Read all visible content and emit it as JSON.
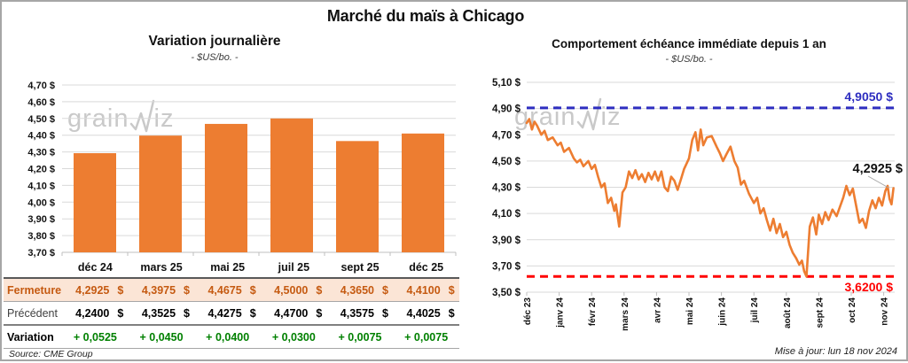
{
  "page": {
    "title": "Marché du maïs à Chicago",
    "source": "Source: CME Group",
    "updated": "Mise à jour: lun 18 nov 2024",
    "watermark": {
      "pre": "grain",
      "post": "iz"
    }
  },
  "colors": {
    "orange": "#ED7D31",
    "blue": "#2E2EC0",
    "red": "#FF0000",
    "green": "#008000",
    "fermeture_text": "#C55A11",
    "fermeture_bg": "#FBE5D6",
    "grid": "#D9D9D9",
    "axis": "#BFBFBF",
    "watermark": "#C9C9C9",
    "border": "#A6A6A6"
  },
  "chart_data": [
    {
      "type": "bar",
      "title": "Variation journalière",
      "subtitle": "- $US/bo. -",
      "categories": [
        "déc 24",
        "mars 25",
        "mai 25",
        "juil 25",
        "sept 25",
        "déc 25"
      ],
      "values": [
        4.2925,
        4.3975,
        4.4675,
        4.5,
        4.365,
        4.41
      ],
      "ylim": [
        3.7,
        4.7
      ],
      "ytick_step": 0.1,
      "grid": true,
      "bar_color": "orange"
    },
    {
      "type": "line",
      "title": "Comportement échéance immédiate depuis 1 an",
      "subtitle": "- $US/bo. -",
      "x_labels": [
        "déc 23",
        "janv 24",
        "févr 24",
        "mars 24",
        "avr 24",
        "mai 24",
        "juin 24",
        "juil 24",
        "août 24",
        "sept 24",
        "oct 24",
        "nov 24"
      ],
      "ylim": [
        3.5,
        5.1
      ],
      "ytick_step": 0.2,
      "grid": true,
      "hlines": [
        {
          "value": 4.905,
          "label": "4,9050 $",
          "color": "blue",
          "style": "dashed"
        },
        {
          "value": 3.62,
          "label": "3,6200 $",
          "color": "red",
          "style": "dashed"
        }
      ],
      "last_value": 4.2925,
      "last_label": "4,2925 $",
      "series": [
        {
          "name": "échéance immédiate",
          "color": "orange",
          "points": [
            [
              0.0,
              4.79
            ],
            [
              0.08,
              4.82
            ],
            [
              0.16,
              4.74
            ],
            [
              0.24,
              4.8
            ],
            [
              0.32,
              4.77
            ],
            [
              0.45,
              4.7
            ],
            [
              0.55,
              4.73
            ],
            [
              0.65,
              4.66
            ],
            [
              0.8,
              4.68
            ],
            [
              0.95,
              4.62
            ],
            [
              1.05,
              4.64
            ],
            [
              1.15,
              4.57
            ],
            [
              1.3,
              4.6
            ],
            [
              1.45,
              4.52
            ],
            [
              1.55,
              4.49
            ],
            [
              1.65,
              4.51
            ],
            [
              1.75,
              4.46
            ],
            [
              1.9,
              4.5
            ],
            [
              2.0,
              4.44
            ],
            [
              2.1,
              4.47
            ],
            [
              2.2,
              4.38
            ],
            [
              2.3,
              4.3
            ],
            [
              2.4,
              4.33
            ],
            [
              2.5,
              4.18
            ],
            [
              2.6,
              4.22
            ],
            [
              2.7,
              4.12
            ],
            [
              2.75,
              4.17
            ],
            [
              2.85,
              4.0
            ],
            [
              2.95,
              4.26
            ],
            [
              3.05,
              4.3
            ],
            [
              3.15,
              4.42
            ],
            [
              3.25,
              4.37
            ],
            [
              3.35,
              4.43
            ],
            [
              3.45,
              4.36
            ],
            [
              3.55,
              4.4
            ],
            [
              3.65,
              4.34
            ],
            [
              3.75,
              4.41
            ],
            [
              3.85,
              4.36
            ],
            [
              3.95,
              4.42
            ],
            [
              4.05,
              4.35
            ],
            [
              4.15,
              4.42
            ],
            [
              4.25,
              4.3
            ],
            [
              4.35,
              4.27
            ],
            [
              4.45,
              4.38
            ],
            [
              4.55,
              4.35
            ],
            [
              4.65,
              4.28
            ],
            [
              4.75,
              4.36
            ],
            [
              4.85,
              4.44
            ],
            [
              5.0,
              4.52
            ],
            [
              5.1,
              4.66
            ],
            [
              5.2,
              4.72
            ],
            [
              5.28,
              4.58
            ],
            [
              5.36,
              4.74
            ],
            [
              5.44,
              4.62
            ],
            [
              5.55,
              4.68
            ],
            [
              5.7,
              4.69
            ],
            [
              5.85,
              4.61
            ],
            [
              5.95,
              4.56
            ],
            [
              6.05,
              4.5
            ],
            [
              6.15,
              4.55
            ],
            [
              6.28,
              4.61
            ],
            [
              6.4,
              4.5
            ],
            [
              6.5,
              4.45
            ],
            [
              6.6,
              4.32
            ],
            [
              6.7,
              4.35
            ],
            [
              6.85,
              4.25
            ],
            [
              7.0,
              4.18
            ],
            [
              7.1,
              4.22
            ],
            [
              7.2,
              4.1
            ],
            [
              7.3,
              4.14
            ],
            [
              7.4,
              4.05
            ],
            [
              7.5,
              3.97
            ],
            [
              7.6,
              4.06
            ],
            [
              7.7,
              3.95
            ],
            [
              7.8,
              4.02
            ],
            [
              7.9,
              3.92
            ],
            [
              8.0,
              3.96
            ],
            [
              8.1,
              3.86
            ],
            [
              8.2,
              3.8
            ],
            [
              8.3,
              3.76
            ],
            [
              8.4,
              3.71
            ],
            [
              8.48,
              3.74
            ],
            [
              8.55,
              3.66
            ],
            [
              8.62,
              3.62
            ],
            [
              8.72,
              4.0
            ],
            [
              8.82,
              4.07
            ],
            [
              8.92,
              3.94
            ],
            [
              9.0,
              4.09
            ],
            [
              9.1,
              4.02
            ],
            [
              9.2,
              4.11
            ],
            [
              9.3,
              4.05
            ],
            [
              9.42,
              4.13
            ],
            [
              9.55,
              4.08
            ],
            [
              9.65,
              4.15
            ],
            [
              9.75,
              4.22
            ],
            [
              9.85,
              4.31
            ],
            [
              9.95,
              4.24
            ],
            [
              10.05,
              4.29
            ],
            [
              10.15,
              4.16
            ],
            [
              10.25,
              4.03
            ],
            [
              10.35,
              4.06
            ],
            [
              10.45,
              3.99
            ],
            [
              10.55,
              4.12
            ],
            [
              10.65,
              4.2
            ],
            [
              10.75,
              4.14
            ],
            [
              10.85,
              4.22
            ],
            [
              10.95,
              4.16
            ],
            [
              11.05,
              4.27
            ],
            [
              11.12,
              4.31
            ],
            [
              11.18,
              4.21
            ],
            [
              11.24,
              4.17
            ],
            [
              11.3,
              4.2925
            ]
          ]
        }
      ]
    }
  ],
  "table": {
    "header": [
      "déc 24",
      "mars 25",
      "mai 25",
      "juil 25",
      "sept 25",
      "déc 25"
    ],
    "rows": [
      {
        "key": "fermeture",
        "label": "Fermeture",
        "unit": "$",
        "values": [
          "4,2925",
          "4,3975",
          "4,4675",
          "4,5000",
          "4,3650",
          "4,4100"
        ]
      },
      {
        "key": "precedent",
        "label": "Précédent",
        "unit": "$",
        "values": [
          "4,2400",
          "4,3525",
          "4,4275",
          "4,4700",
          "4,3575",
          "4,4025"
        ]
      },
      {
        "key": "variation",
        "label": "Variation",
        "unit": "",
        "values": [
          "+ 0,0525",
          "+ 0,0450",
          "+ 0,0400",
          "+ 0,0300",
          "+ 0,0075",
          "+ 0,0075"
        ]
      }
    ]
  }
}
